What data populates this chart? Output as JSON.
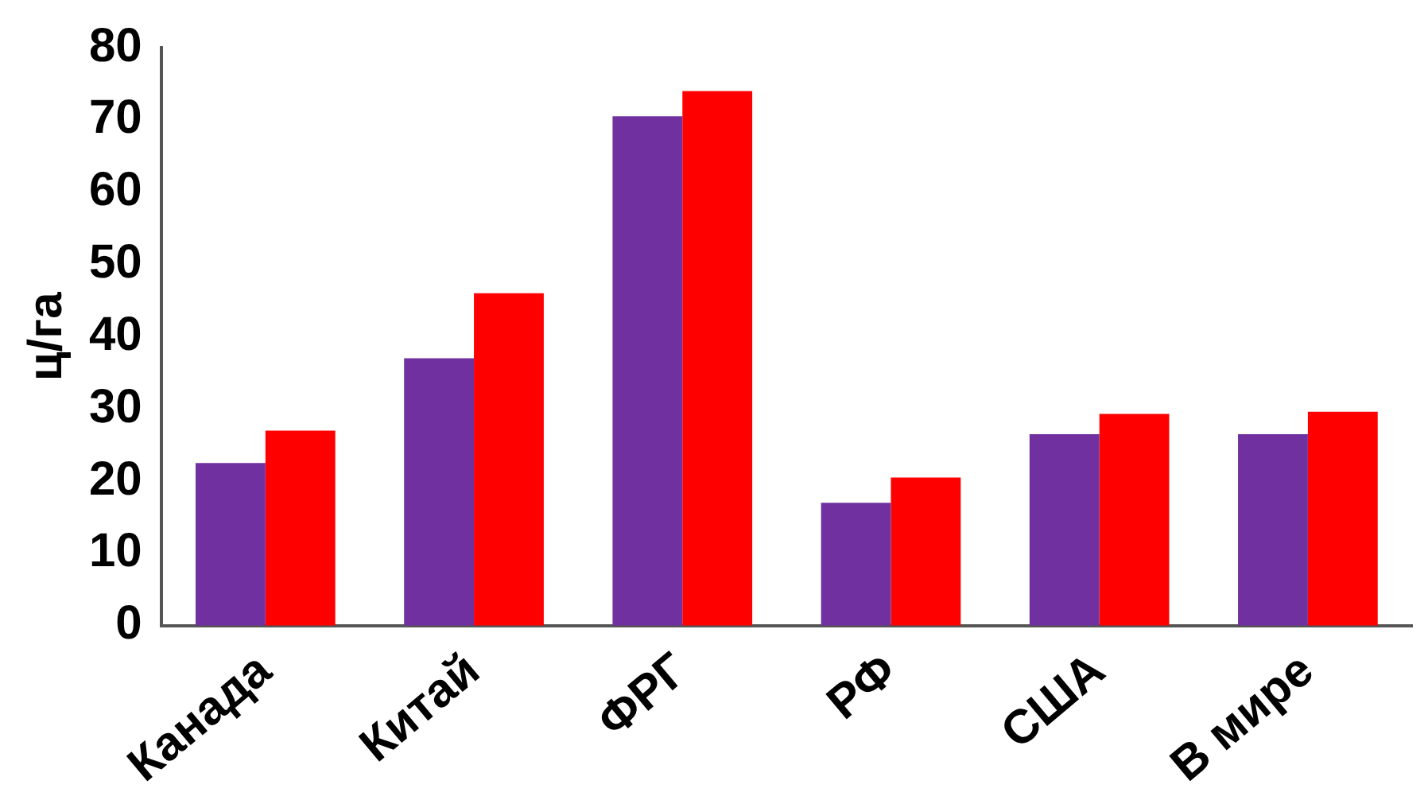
{
  "chart_data": {
    "type": "bar",
    "ylabel": "ц/га",
    "categories": [
      "Канада",
      "Китай",
      "ФРГ",
      "РФ",
      "США",
      "В мире"
    ],
    "series": [
      {
        "color": "#7030a0",
        "values": [
          22.5,
          37,
          70.5,
          17,
          26.5,
          26.5
        ]
      },
      {
        "color": "#ff0000",
        "values": [
          27,
          46,
          74,
          20.5,
          29.3,
          29.6
        ]
      }
    ],
    "ylim": [
      0,
      80
    ],
    "yticks": [
      0,
      10,
      20,
      30,
      40,
      50,
      60,
      70,
      80
    ],
    "grid": false,
    "legend": false
  }
}
